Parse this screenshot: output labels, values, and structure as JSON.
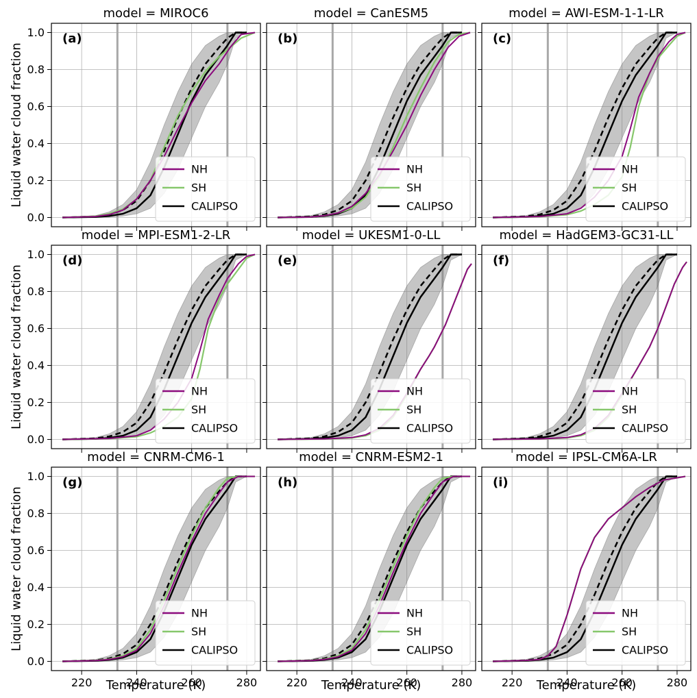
{
  "figure": {
    "ylabel": "Liquid water cloud fraction",
    "xlabel": "Temperature (K)"
  },
  "colors": {
    "nh": "#8b0a7d",
    "sh": "#86c76b",
    "calipso": "#000000",
    "band": "#7f7f7f",
    "grid": "#b0b0b0",
    "vline": "#a8a8a8"
  },
  "chart_data": {
    "type": "line",
    "xlim": [
      209,
      285
    ],
    "ylim": [
      -0.05,
      1.05
    ],
    "xticks": [
      220,
      240,
      260,
      280
    ],
    "yticks": [
      0.0,
      0.2,
      0.4,
      0.6,
      0.8,
      1.0
    ],
    "ytick_labels": [
      "0.0",
      "0.2",
      "0.4",
      "0.6",
      "0.8",
      "1.0"
    ],
    "reference_lines_x": [
      233,
      273
    ],
    "legend": {
      "position": "lower-right",
      "entries": [
        "NH",
        "SH",
        "CALIPSO"
      ]
    },
    "calipso": {
      "solid": {
        "x": [
          213,
          225,
          230,
          235,
          240,
          245,
          250,
          255,
          260,
          265,
          270,
          273,
          276,
          280
        ],
        "y": [
          0.0,
          0.003,
          0.008,
          0.02,
          0.05,
          0.12,
          0.27,
          0.45,
          0.63,
          0.77,
          0.87,
          0.93,
          1.0,
          1.0
        ]
      },
      "dashed": {
        "x": [
          213,
          225,
          230,
          235,
          240,
          245,
          250,
          255,
          260,
          265,
          270,
          273,
          276,
          280
        ],
        "y": [
          0.0,
          0.006,
          0.016,
          0.04,
          0.09,
          0.2,
          0.36,
          0.54,
          0.7,
          0.83,
          0.92,
          0.97,
          1.0,
          1.0
        ]
      },
      "band_upper": [
        0.0,
        0.01,
        0.03,
        0.07,
        0.15,
        0.3,
        0.5,
        0.68,
        0.83,
        0.93,
        0.98,
        1.0,
        1.0,
        1.0
      ],
      "band_lower": [
        0.0,
        0.0,
        0.002,
        0.008,
        0.02,
        0.05,
        0.13,
        0.26,
        0.43,
        0.6,
        0.73,
        0.83,
        0.97,
        1.0
      ]
    },
    "panels": [
      {
        "title": "model = MIROC6",
        "label": "(a)",
        "nh": {
          "x": [
            213,
            225,
            230,
            235,
            240,
            245,
            250,
            255,
            260,
            265,
            270,
            274,
            278,
            283
          ],
          "y": [
            0,
            0.005,
            0.015,
            0.04,
            0.1,
            0.2,
            0.33,
            0.48,
            0.62,
            0.74,
            0.83,
            0.92,
            0.99,
            1.0
          ]
        },
        "sh": {
          "x": [
            213,
            225,
            230,
            235,
            240,
            245,
            250,
            255,
            260,
            265,
            270,
            274,
            278,
            283
          ],
          "y": [
            0,
            0.007,
            0.02,
            0.045,
            0.1,
            0.2,
            0.38,
            0.55,
            0.68,
            0.79,
            0.87,
            0.92,
            0.97,
            1.0
          ]
        }
      },
      {
        "title": "model = CanESM5",
        "label": "(b)",
        "nh": {
          "x": [
            213,
            225,
            230,
            235,
            240,
            245,
            250,
            255,
            260,
            265,
            270,
            275,
            279,
            283
          ],
          "y": [
            0,
            0.003,
            0.01,
            0.025,
            0.06,
            0.13,
            0.23,
            0.36,
            0.5,
            0.66,
            0.8,
            0.92,
            0.98,
            1.0
          ]
        },
        "sh": {
          "x": [
            213,
            225,
            230,
            235,
            240,
            245,
            250,
            255,
            260,
            265,
            270,
            275,
            279,
            283
          ],
          "y": [
            0,
            0.003,
            0.01,
            0.025,
            0.05,
            0.11,
            0.22,
            0.38,
            0.55,
            0.7,
            0.84,
            0.95,
            0.99,
            1.0
          ]
        }
      },
      {
        "title": "model = AWI-ESM-1-1-LR",
        "label": "(c)",
        "nh": {
          "x": [
            213,
            230,
            240,
            245,
            250,
            255,
            260,
            263,
            266,
            270,
            273,
            277,
            280,
            283
          ],
          "y": [
            0,
            0.005,
            0.02,
            0.05,
            0.11,
            0.2,
            0.33,
            0.48,
            0.65,
            0.78,
            0.87,
            0.95,
            0.99,
            1.0
          ]
        },
        "sh": {
          "x": [
            213,
            230,
            240,
            245,
            250,
            255,
            260,
            263,
            266,
            270,
            273,
            277,
            280,
            283
          ],
          "y": [
            0,
            0.004,
            0.015,
            0.035,
            0.07,
            0.12,
            0.22,
            0.38,
            0.6,
            0.78,
            0.86,
            0.93,
            0.98,
            1.0
          ]
        }
      },
      {
        "title": "model = MPI-ESM1-2-LR",
        "label": "(d)",
        "nh": {
          "x": [
            213,
            230,
            240,
            245,
            250,
            255,
            260,
            263,
            266,
            270,
            273,
            277,
            280,
            283
          ],
          "y": [
            0,
            0.005,
            0.02,
            0.05,
            0.11,
            0.2,
            0.33,
            0.48,
            0.65,
            0.78,
            0.87,
            0.95,
            0.99,
            1.0
          ]
        },
        "sh": {
          "x": [
            213,
            230,
            240,
            245,
            250,
            255,
            260,
            263,
            266,
            270,
            273,
            277,
            280,
            283
          ],
          "y": [
            0,
            0.004,
            0.015,
            0.035,
            0.07,
            0.12,
            0.22,
            0.38,
            0.6,
            0.76,
            0.84,
            0.92,
            0.98,
            1.0
          ]
        }
      },
      {
        "title": "model = UKESM1-0-LL",
        "label": "(e)",
        "nh": {
          "x": [
            213,
            230,
            240,
            245,
            250,
            255,
            260,
            265,
            268,
            270,
            274,
            278,
            282,
            283.5
          ],
          "y": [
            0,
            0.003,
            0.01,
            0.025,
            0.06,
            0.13,
            0.25,
            0.38,
            0.45,
            0.5,
            0.62,
            0.77,
            0.92,
            0.95
          ]
        },
        "sh": {
          "x": [
            213,
            230,
            240,
            245,
            250,
            255,
            260,
            265,
            268,
            270,
            274,
            278,
            282,
            283.5
          ],
          "y": [
            0,
            0.002,
            0.008,
            0.02,
            0.05,
            0.12,
            0.24,
            0.38,
            0.45,
            0.5,
            0.62,
            0.77,
            0.92,
            0.95
          ]
        }
      },
      {
        "title": "model = HadGEM3-GC31-LL",
        "label": "(f)",
        "nh": {
          "x": [
            213,
            230,
            240,
            245,
            250,
            255,
            260,
            265,
            270,
            273,
            276,
            279,
            282,
            283.5
          ],
          "y": [
            0,
            0.003,
            0.01,
            0.025,
            0.06,
            0.13,
            0.25,
            0.37,
            0.5,
            0.6,
            0.72,
            0.84,
            0.93,
            0.96
          ]
        },
        "sh": {
          "x": [
            213,
            230,
            240,
            245,
            250,
            255,
            260,
            265,
            270,
            273,
            276,
            279,
            282,
            283.5
          ],
          "y": [
            0,
            0.002,
            0.008,
            0.02,
            0.05,
            0.12,
            0.24,
            0.37,
            0.5,
            0.6,
            0.72,
            0.84,
            0.93,
            0.96
          ]
        }
      },
      {
        "title": "model = CNRM-CM6-1",
        "label": "(g)",
        "nh": {
          "x": [
            213,
            225,
            230,
            235,
            240,
            245,
            250,
            255,
            260,
            265,
            270,
            273,
            277,
            283
          ],
          "y": [
            0,
            0.004,
            0.01,
            0.025,
            0.06,
            0.15,
            0.3,
            0.48,
            0.65,
            0.8,
            0.91,
            0.97,
            1.0,
            1.0
          ]
        },
        "sh": {
          "x": [
            213,
            225,
            230,
            235,
            240,
            245,
            250,
            255,
            260,
            265,
            270,
            273,
            277,
            283
          ],
          "y": [
            0,
            0.005,
            0.012,
            0.03,
            0.07,
            0.17,
            0.33,
            0.51,
            0.68,
            0.83,
            0.94,
            0.99,
            1.0,
            1.0
          ]
        }
      },
      {
        "title": "model = CNRM-ESM2-1",
        "label": "(h)",
        "nh": {
          "x": [
            213,
            225,
            230,
            235,
            240,
            245,
            250,
            255,
            260,
            265,
            270,
            273,
            277,
            283
          ],
          "y": [
            0,
            0.004,
            0.01,
            0.025,
            0.06,
            0.15,
            0.3,
            0.48,
            0.65,
            0.8,
            0.91,
            0.97,
            1.0,
            1.0
          ]
        },
        "sh": {
          "x": [
            213,
            225,
            230,
            235,
            240,
            245,
            250,
            255,
            260,
            265,
            270,
            273,
            277,
            283
          ],
          "y": [
            0,
            0.005,
            0.012,
            0.03,
            0.07,
            0.17,
            0.33,
            0.51,
            0.68,
            0.83,
            0.94,
            0.99,
            1.0,
            1.0
          ]
        }
      },
      {
        "title": "model = IPSL-CM6A-LR",
        "label": "(i)",
        "nh": {
          "x": [
            213,
            225,
            230,
            233,
            236,
            240,
            245,
            250,
            255,
            260,
            265,
            270,
            275,
            283
          ],
          "y": [
            0,
            0.005,
            0.01,
            0.03,
            0.08,
            0.25,
            0.5,
            0.67,
            0.77,
            0.83,
            0.89,
            0.94,
            0.98,
            1.0
          ]
        },
        "sh": {
          "x": [
            213,
            225,
            230,
            233,
            236,
            240,
            245,
            250,
            255,
            260,
            265,
            270,
            275,
            283
          ],
          "y": [
            0,
            0.005,
            0.01,
            0.03,
            0.08,
            0.25,
            0.5,
            0.67,
            0.77,
            0.83,
            0.89,
            0.94,
            0.98,
            1.0
          ]
        }
      }
    ]
  }
}
